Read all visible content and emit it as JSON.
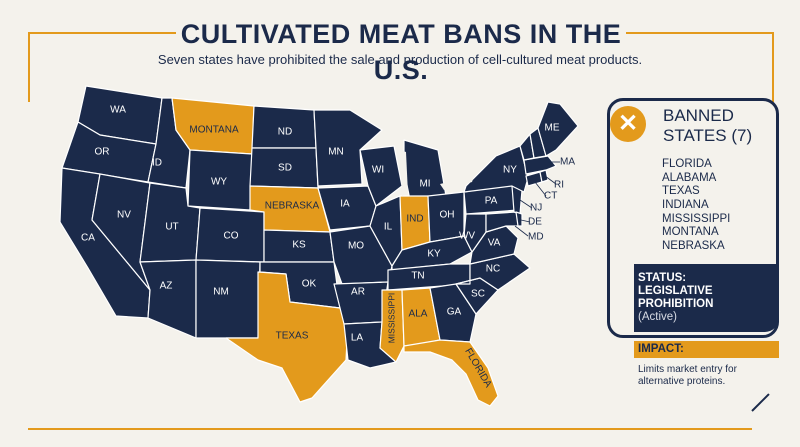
{
  "header": {
    "title": "CULTIVATED MEAT BANS IN THE U.S.",
    "subtitle": "Seven states have prohibited the sale and production of cell-cultured meat products."
  },
  "colors": {
    "navy": "#1b2a4a",
    "banned": "#e39a1c",
    "background": "#f4f2ec"
  },
  "map": {
    "labels": {
      "WA": "WA",
      "OR": "OR",
      "CA": "CA",
      "ID": "ID",
      "NV": "NV",
      "MT": "MONTANA",
      "WY": "WY",
      "UT": "UT",
      "AZ": "AZ",
      "CO": "CO",
      "NM": "NM",
      "ND": "ND",
      "SD": "SD",
      "NE": "NEBRASKA",
      "KS": "KS",
      "OK": "OK",
      "TX": "TEXAS",
      "MN": "MN",
      "IA": "IA",
      "MO": "MO",
      "AR": "AR",
      "LA": "LA",
      "WI": "WI",
      "IL": "IL",
      "MI": "MI",
      "IN": "IND",
      "OH": "OH",
      "KY": "KY",
      "TN": "TN",
      "MS": "MISSISSIPPI",
      "AL": "ALA",
      "GA": "GA",
      "FL": "FLORIDA",
      "SC": "SC",
      "NC": "NC",
      "VA": "VA",
      "WV": "WV",
      "PA": "PA",
      "NY": "NY",
      "ME": "ME",
      "MA": "MA",
      "RI": "RI",
      "CT": "CT",
      "NJ": "NJ",
      "DE": "DE",
      "MD": "MD"
    },
    "banned": [
      "MT",
      "NE",
      "TX",
      "IN",
      "MS",
      "AL",
      "FL"
    ]
  },
  "panel": {
    "badge_icon": "close-icon",
    "title_line1": "BANNED",
    "title_line2": "STATES (7)",
    "banned_states": [
      "FLORIDA",
      "ALABAMA",
      "TEXAS",
      "INDIANA",
      "MISSISSIPPI",
      "MONTANA",
      "NEBRASKA"
    ],
    "status_line1": "STATUS:",
    "status_line2": "LEGISLATIVE PROHIBITION",
    "status_line3": "(Active)",
    "impact_label": "IMPACT:",
    "impact_text": "Limits market entry for alternative proteins."
  }
}
